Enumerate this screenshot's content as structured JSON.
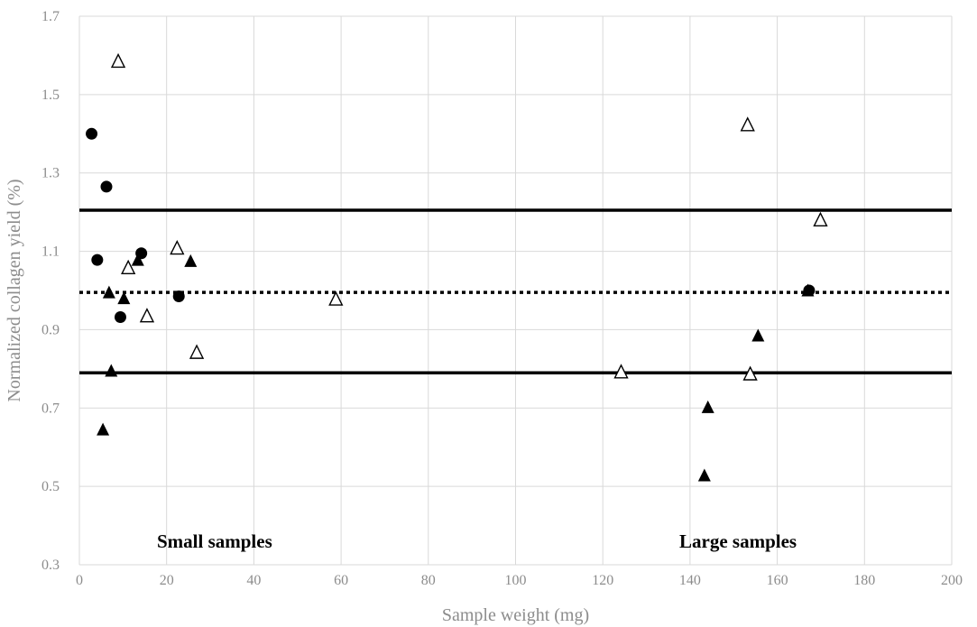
{
  "chart_data": {
    "type": "scatter",
    "xlabel": "Sample weight (mg)",
    "ylabel": "Normalized collagen yield (%)",
    "xlim": [
      0,
      200
    ],
    "ylim": [
      0.3,
      1.7
    ],
    "x_ticks": [
      0,
      20,
      40,
      60,
      80,
      100,
      120,
      140,
      160,
      180,
      200
    ],
    "y_ticks": [
      0.3,
      0.5,
      0.7,
      0.9,
      1.1,
      1.3,
      1.5,
      1.7
    ],
    "x_tick_labels": [
      "0",
      "20",
      "40",
      "60",
      "80",
      "100",
      "120",
      "140",
      "160",
      "180",
      "200"
    ],
    "y_tick_labels": [
      "0.3",
      "0.5",
      "0.7",
      "0.9",
      "1.1",
      "1.3",
      "1.5",
      "1.7"
    ],
    "grid": true,
    "series": [
      {
        "marker": "circle-filled",
        "color": "#000000",
        "points": [
          [
            2.8,
            1.4
          ],
          [
            6.2,
            1.265
          ],
          [
            4.1,
            1.078
          ],
          [
            14.2,
            1.095
          ],
          [
            9.4,
            0.932
          ],
          [
            22.8,
            0.985
          ],
          [
            167.3,
            1.0
          ]
        ]
      },
      {
        "marker": "triangle-filled",
        "color": "#000000",
        "points": [
          [
            6.8,
            0.995
          ],
          [
            10.2,
            0.98
          ],
          [
            13.4,
            1.078
          ],
          [
            25.5,
            1.075
          ],
          [
            7.3,
            0.795
          ],
          [
            5.4,
            0.645
          ],
          [
            143.3,
            0.528
          ],
          [
            144.1,
            0.702
          ],
          [
            155.6,
            0.885
          ],
          [
            167.0,
            1.0
          ]
        ]
      },
      {
        "marker": "triangle-open",
        "color": "#000000",
        "points": [
          [
            8.9,
            1.585
          ],
          [
            22.4,
            1.108
          ],
          [
            11.2,
            1.058
          ],
          [
            15.5,
            0.935
          ],
          [
            26.9,
            0.842
          ],
          [
            58.8,
            0.978
          ],
          [
            124.2,
            0.792
          ],
          [
            153.2,
            1.423
          ],
          [
            153.8,
            0.787
          ],
          [
            169.9,
            1.18
          ]
        ]
      }
    ],
    "reference_lines": [
      {
        "y": 1.205,
        "style": "solid"
      },
      {
        "y": 0.995,
        "style": "dotted"
      },
      {
        "y": 0.79,
        "style": "solid"
      }
    ],
    "annotations": [
      {
        "text": "Small samples",
        "x": 31,
        "y": 0.36
      },
      {
        "text": "Large samples",
        "x": 151,
        "y": 0.36
      }
    ],
    "colors": {
      "grid": "#d9d9d9",
      "tick_text": "#8c8c8c",
      "marks": "#000000"
    }
  }
}
